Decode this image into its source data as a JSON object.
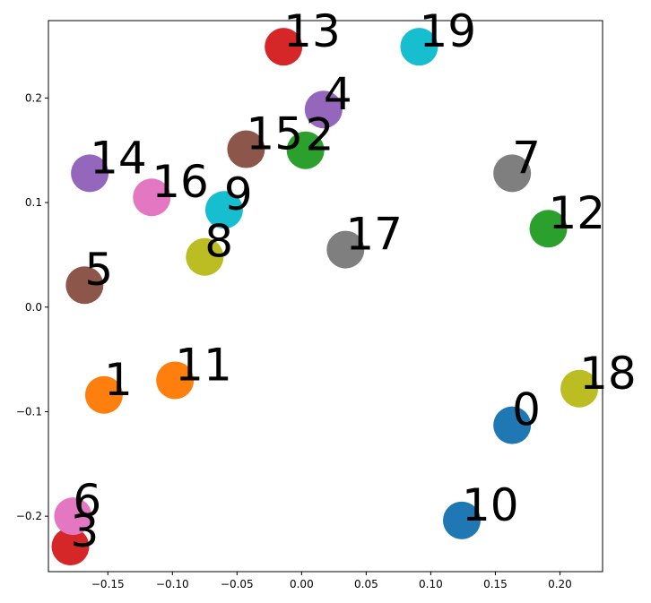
{
  "chart_data": {
    "type": "scatter",
    "title": "",
    "xlabel": "",
    "ylabel": "",
    "xlim": [
      -0.196,
      0.233
    ],
    "ylim": [
      -0.253,
      0.274
    ],
    "grid": false,
    "legend": "none",
    "x_ticks": [
      {
        "value": -0.15,
        "label": "−0.15"
      },
      {
        "value": -0.1,
        "label": "−0.10"
      },
      {
        "value": -0.05,
        "label": "−0.05"
      },
      {
        "value": 0.0,
        "label": "0.00"
      },
      {
        "value": 0.05,
        "label": "0.05"
      },
      {
        "value": 0.1,
        "label": "0.10"
      },
      {
        "value": 0.15,
        "label": "0.15"
      },
      {
        "value": 0.2,
        "label": "0.20"
      }
    ],
    "y_ticks": [
      {
        "value": -0.2,
        "label": "−0.2"
      },
      {
        "value": -0.1,
        "label": "−0.1"
      },
      {
        "value": 0.0,
        "label": "0.0"
      },
      {
        "value": 0.1,
        "label": "0.1"
      },
      {
        "value": 0.2,
        "label": "0.2"
      }
    ],
    "points": [
      {
        "label": "0",
        "x": 0.163,
        "y": -0.113,
        "color": "#1f77b4"
      },
      {
        "label": "1",
        "x": -0.153,
        "y": -0.084,
        "color": "#ff7f0e"
      },
      {
        "label": "2",
        "x": 0.003,
        "y": 0.15,
        "color": "#2ca02c"
      },
      {
        "label": "3",
        "x": -0.179,
        "y": -0.229,
        "color": "#d62728"
      },
      {
        "label": "4",
        "x": 0.017,
        "y": 0.189,
        "color": "#9467bd"
      },
      {
        "label": "5",
        "x": -0.168,
        "y": 0.021,
        "color": "#8c564b"
      },
      {
        "label": "6",
        "x": -0.177,
        "y": -0.2,
        "color": "#e377c2"
      },
      {
        "label": "7",
        "x": 0.163,
        "y": 0.128,
        "color": "#7f7f7f"
      },
      {
        "label": "8",
        "x": -0.075,
        "y": 0.048,
        "color": "#bcbd22"
      },
      {
        "label": "9",
        "x": -0.06,
        "y": 0.093,
        "color": "#17becf"
      },
      {
        "label": "10",
        "x": 0.124,
        "y": -0.204,
        "color": "#1f77b4"
      },
      {
        "label": "11",
        "x": -0.098,
        "y": -0.07,
        "color": "#ff7f0e"
      },
      {
        "label": "12",
        "x": 0.191,
        "y": 0.075,
        "color": "#2ca02c"
      },
      {
        "label": "13",
        "x": -0.014,
        "y": 0.249,
        "color": "#d62728"
      },
      {
        "label": "14",
        "x": -0.164,
        "y": 0.128,
        "color": "#9467bd"
      },
      {
        "label": "15",
        "x": -0.043,
        "y": 0.151,
        "color": "#8c564b"
      },
      {
        "label": "16",
        "x": -0.116,
        "y": 0.105,
        "color": "#e377c2"
      },
      {
        "label": "17",
        "x": 0.034,
        "y": 0.055,
        "color": "#7f7f7f"
      },
      {
        "label": "18",
        "x": 0.215,
        "y": -0.078,
        "color": "#bcbd22"
      },
      {
        "label": "19",
        "x": 0.091,
        "y": 0.249,
        "color": "#17becf"
      }
    ]
  }
}
